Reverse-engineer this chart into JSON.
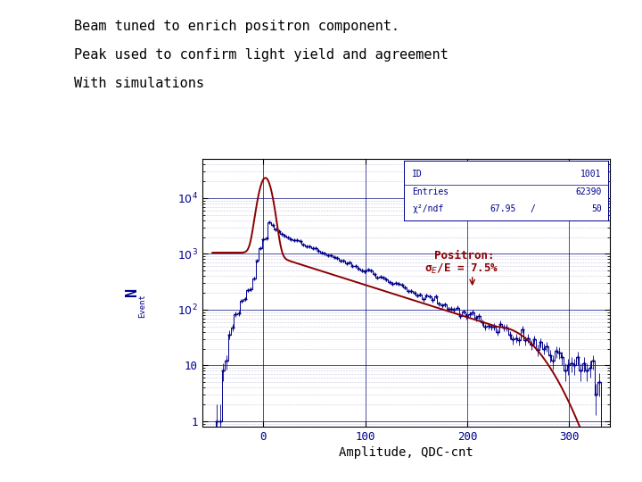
{
  "title_lines": [
    "Beam tuned to enrich positron component.",
    "Peak used to confirm light yield and agreement",
    "With simulations"
  ],
  "xlabel": "Amplitude, QDC-cnt",
  "xlim": [
    -60,
    340
  ],
  "ylim": [
    0.8,
    50000
  ],
  "xticks": [
    0,
    100,
    200,
    300
  ],
  "yticks": [
    1,
    10,
    100,
    1000,
    10000
  ],
  "ytick_labels": [
    "1",
    "10",
    "10 2",
    "10 3",
    "10 4"
  ],
  "stats_ID": "1001",
  "stats_Entries": "62390",
  "stats_chi2": "67.95",
  "stats_ndf": "50",
  "hist_color": "#00008B",
  "fit_color": "#8B0000",
  "text_color": "#00008B",
  "background_color": "#ffffff",
  "grid_major_color": "#000080",
  "grid_minor_color": "#000080",
  "title_fontsize": 11,
  "tick_fontsize": 9,
  "xlabel_fontsize": 10,
  "stats_fontsize": 7,
  "annot_fontsize": 9
}
